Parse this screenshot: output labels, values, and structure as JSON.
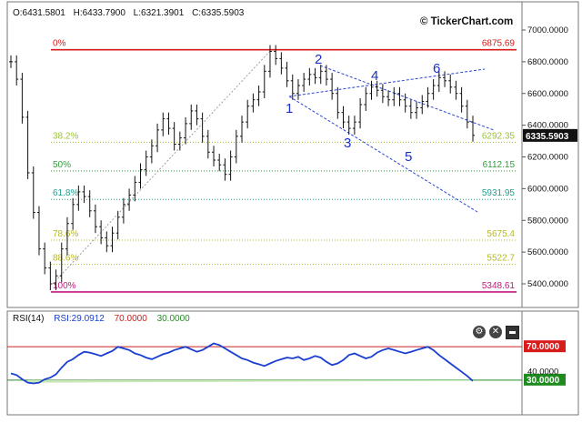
{
  "header": {
    "open": "O:6431.5801",
    "high": "H:6433.7900",
    "low": "L:6321.3901",
    "close": "C:6335.5903",
    "brand": "© TickerChart.com"
  },
  "price_axis": {
    "ticks": [
      "7000.0000",
      "6800.0000",
      "6600.0000",
      "6400.0000",
      "6200.0000",
      "6000.0000",
      "5800.0000",
      "5600.0000",
      "5400.0000"
    ],
    "current_label": "6335.5903",
    "current_value": 6335.59
  },
  "fibonacci": {
    "levels": [
      {
        "pct": "0%",
        "value": "6875.69",
        "price": 6875.69,
        "color": "#d81b1b"
      },
      {
        "pct": "38.2%",
        "value": "6292.35",
        "price": 6292.35,
        "color": "#9cc23a"
      },
      {
        "pct": "50%",
        "value": "6112.15",
        "price": 6112.15,
        "color": "#2e9d3a"
      },
      {
        "pct": "61.8%",
        "value": "5931.95",
        "price": 5931.95,
        "color": "#22a090"
      },
      {
        "pct": "78.6%",
        "value": "5675.4",
        "price": 5675.4,
        "color": "#b7b72a"
      },
      {
        "pct": "88.6%",
        "value": "5522.7",
        "price": 5522.7,
        "color": "#b7b72a"
      },
      {
        "pct": "100%",
        "value": "5348.61",
        "price": 5348.61,
        "color": "#c2187a"
      }
    ]
  },
  "wave_labels": [
    "1",
    "2",
    "3",
    "4",
    "5",
    "6"
  ],
  "rsi": {
    "title": "RSI(14)",
    "value_label": "RSI:29.0912",
    "upper_label": "70.0000",
    "lower_label": "30.0000",
    "ticks": [
      "40.0000"
    ],
    "upper_badge": "70.0000",
    "lower_badge": "30.0000"
  },
  "controls": {
    "settings_icon": "gear-icon",
    "close_icon": "close-icon",
    "minimize_icon": "minimize-icon"
  },
  "chart_data": {
    "type": "ohlc",
    "price_range": [
      5300,
      7100
    ],
    "close_series": [
      6800,
      6690,
      6450,
      6100,
      5850,
      5620,
      5500,
      5400,
      5450,
      5620,
      5780,
      5900,
      5980,
      5950,
      5860,
      5760,
      5690,
      5640,
      5720,
      5820,
      5900,
      5960,
      6040,
      6120,
      6200,
      6270,
      6370,
      6440,
      6380,
      6280,
      6320,
      6410,
      6490,
      6440,
      6330,
      6230,
      6180,
      6150,
      6090,
      6200,
      6330,
      6420,
      6520,
      6560,
      6610,
      6740,
      6865,
      6820,
      6760,
      6680,
      6600,
      6650,
      6690,
      6720,
      6700,
      6740,
      6690,
      6600,
      6480,
      6420,
      6380,
      6420,
      6530,
      6600,
      6640,
      6620,
      6580,
      6560,
      6600,
      6560,
      6520,
      6480,
      6510,
      6550,
      6600,
      6650,
      6700,
      6680,
      6640,
      6600,
      6520,
      6420,
      6336
    ],
    "rsi_range": [
      15,
      90
    ],
    "rsi_series": [
      38,
      36,
      31,
      27,
      26,
      27,
      31,
      33,
      37,
      45,
      52,
      55,
      60,
      64,
      63,
      61,
      59,
      62,
      65,
      70,
      68,
      66,
      62,
      60,
      57,
      55,
      58,
      61,
      63,
      66,
      68,
      70,
      67,
      64,
      66,
      70,
      74,
      72,
      68,
      64,
      60,
      56,
      54,
      51,
      49,
      47,
      50,
      53,
      55,
      57,
      56,
      58,
      54,
      56,
      59,
      57,
      52,
      48,
      50,
      54,
      60,
      62,
      59,
      56,
      58,
      63,
      66,
      68,
      66,
      64,
      62,
      64,
      66,
      68,
      70,
      66,
      60,
      55,
      50,
      45,
      40,
      35,
      29
    ],
    "rsi_levels": [
      70,
      30
    ]
  }
}
